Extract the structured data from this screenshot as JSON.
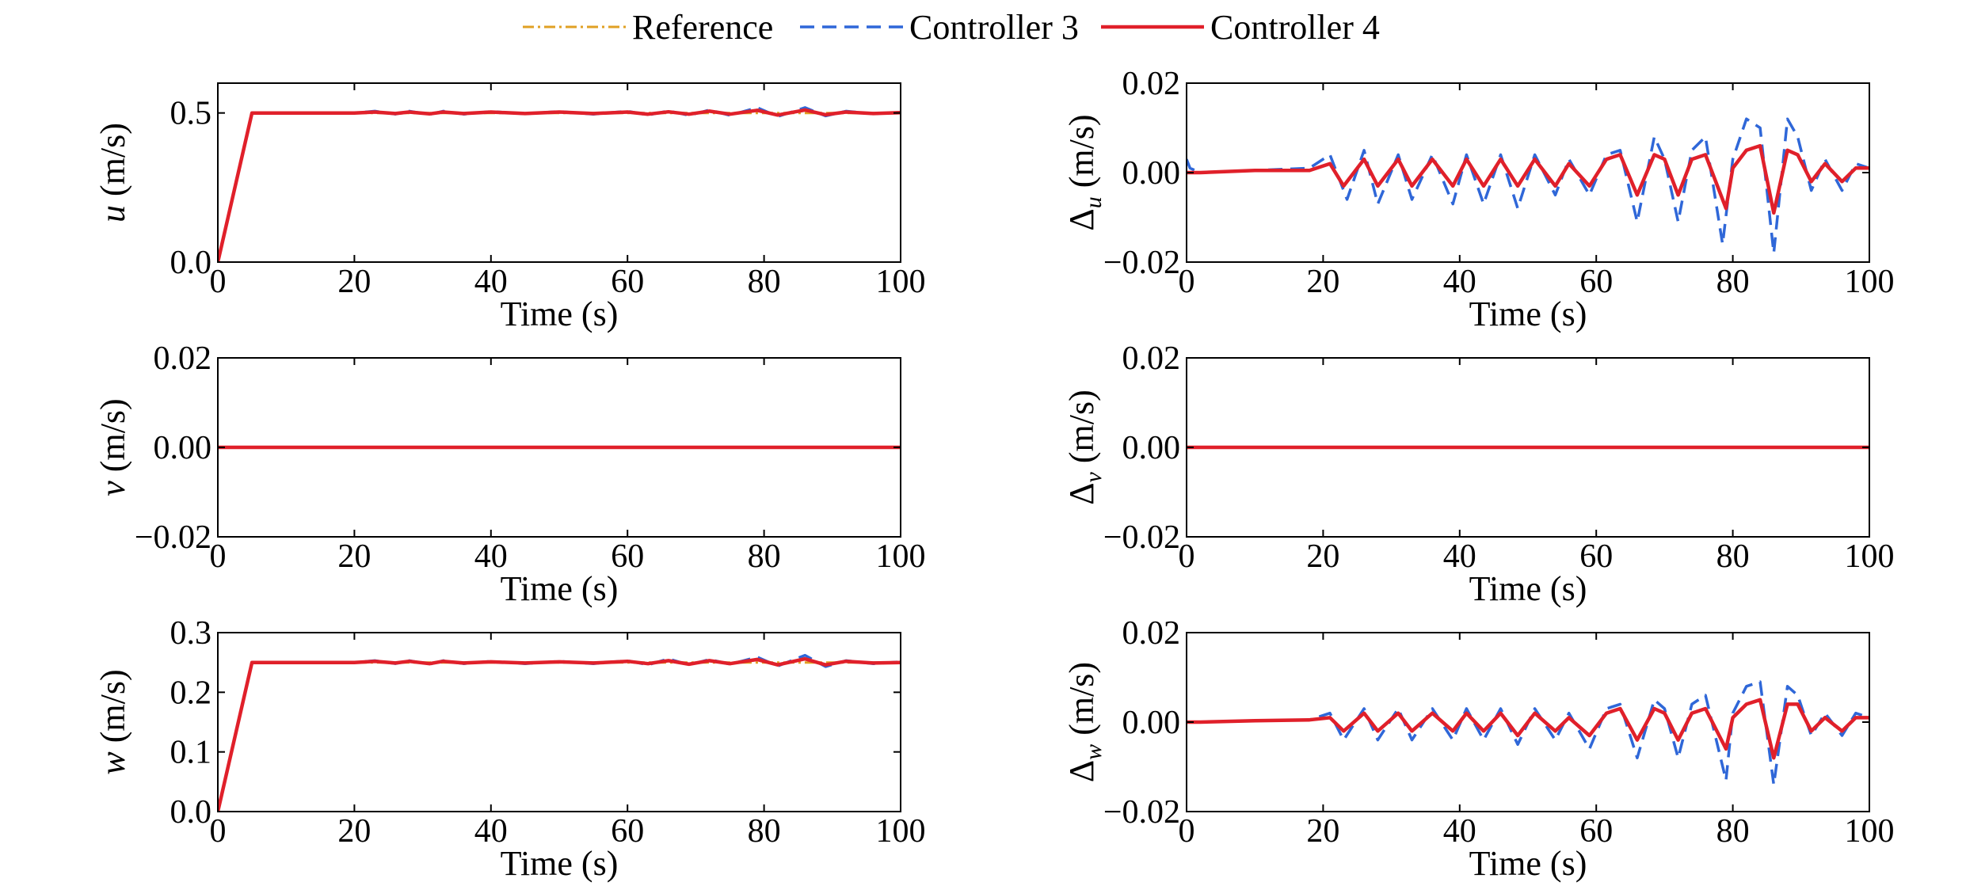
{
  "legend": {
    "entries": [
      {
        "label": "Reference",
        "color": "#E0A024",
        "dash": "dash-dot"
      },
      {
        "label": "Controller 3",
        "color": "#2F67D8",
        "dash": "dashed"
      },
      {
        "label": "Controller 4",
        "color": "#E0202A",
        "dash": "solid"
      }
    ]
  },
  "chart_data": [
    {
      "type": "line",
      "id": "u",
      "ylabel_var": "u",
      "ylabel_sub": "",
      "ylabel_unit": " (m/s)",
      "xlabel": "Time (s)",
      "xlim": [
        0,
        100
      ],
      "ylim": [
        0,
        0.6
      ],
      "xticks": [
        0,
        20,
        40,
        60,
        80,
        100
      ],
      "xtick_labels": [
        "0",
        "20",
        "40",
        "60",
        "80",
        "100"
      ],
      "yticks": [
        0,
        0.5
      ],
      "ytick_labels": [
        "0.0",
        "0.5"
      ],
      "series": [
        {
          "label_ref": 0,
          "x": [
            0,
            5,
            20,
            30,
            40,
            50,
            60,
            70,
            79,
            86,
            90,
            100
          ],
          "y": [
            0,
            0.5,
            0.5,
            0.5,
            0.5,
            0.5,
            0.5,
            0.5,
            0.5,
            0.5,
            0.5,
            0.5
          ]
        },
        {
          "label_ref": 1,
          "x": [
            0,
            5,
            20,
            23,
            26,
            28,
            31,
            33,
            36,
            40,
            45,
            50,
            55,
            60,
            63,
            66,
            69,
            72,
            75,
            79,
            82,
            86,
            89,
            92,
            96,
            100
          ],
          "y": [
            0,
            0.5,
            0.5,
            0.506,
            0.496,
            0.506,
            0.495,
            0.506,
            0.496,
            0.505,
            0.497,
            0.505,
            0.496,
            0.506,
            0.493,
            0.507,
            0.492,
            0.51,
            0.492,
            0.518,
            0.488,
            0.518,
            0.49,
            0.506,
            0.497,
            0.502
          ]
        },
        {
          "label_ref": 2,
          "x": [
            0,
            5,
            20,
            23,
            26,
            28,
            31,
            33,
            36,
            40,
            45,
            50,
            55,
            60,
            63,
            66,
            69,
            72,
            75,
            79,
            82,
            86,
            89,
            92,
            96,
            100
          ],
          "y": [
            0,
            0.5,
            0.5,
            0.503,
            0.498,
            0.503,
            0.497,
            0.503,
            0.498,
            0.503,
            0.498,
            0.503,
            0.498,
            0.503,
            0.496,
            0.504,
            0.496,
            0.506,
            0.496,
            0.509,
            0.493,
            0.51,
            0.494,
            0.503,
            0.498,
            0.501
          ]
        }
      ]
    },
    {
      "type": "line",
      "id": "du",
      "ylabel_var": "Δ",
      "ylabel_sub": "u",
      "ylabel_unit": " (m/s)",
      "xlabel": "Time (s)",
      "xlim": [
        0,
        100
      ],
      "ylim": [
        -0.02,
        0.02
      ],
      "xticks": [
        0,
        20,
        40,
        60,
        80,
        100
      ],
      "xtick_labels": [
        "0",
        "20",
        "40",
        "60",
        "80",
        "100"
      ],
      "yticks": [
        -0.02,
        0,
        0.02
      ],
      "ytick_labels": [
        "−0.02",
        "0.00",
        "0.02"
      ],
      "series": [
        {
          "label_ref": 1,
          "x": [
            0,
            0.5,
            2,
            10,
            18,
            21,
            23.5,
            26,
            28,
            31,
            33,
            36,
            39,
            41,
            43.5,
            46,
            48.5,
            51,
            54,
            56,
            59,
            61.5,
            63.5,
            66,
            68.5,
            70,
            72,
            74,
            76,
            78.5,
            80,
            82,
            84,
            86,
            88,
            89.5,
            91.5,
            93.5,
            96,
            98,
            100
          ],
          "y": [
            0.003,
            0.001,
            0,
            0.0005,
            0.001,
            0.004,
            -0.006,
            0.005,
            -0.007,
            0.004,
            -0.006,
            0.004,
            -0.007,
            0.004,
            -0.007,
            0.004,
            -0.008,
            0.004,
            -0.005,
            0.003,
            -0.005,
            0.004,
            0.005,
            -0.011,
            0.008,
            0.003,
            -0.011,
            0.005,
            0.008,
            -0.016,
            0.003,
            0.012,
            0.01,
            -0.018,
            0.012,
            0.008,
            -0.004,
            0.003,
            -0.004,
            0.002,
            0.001
          ]
        },
        {
          "label_ref": 2,
          "x": [
            0,
            2,
            10,
            18,
            21,
            23,
            26,
            28,
            31,
            33,
            36,
            39,
            41,
            43.5,
            46,
            48.5,
            51,
            54,
            56,
            59,
            61.5,
            63.5,
            66,
            68.5,
            70,
            72,
            74,
            76,
            79,
            80,
            82,
            84,
            86,
            88,
            89.5,
            91.5,
            93.5,
            96,
            98,
            100
          ],
          "y": [
            0,
            0,
            0.0005,
            0.0005,
            0.002,
            -0.003,
            0.003,
            -0.003,
            0.003,
            -0.003,
            0.003,
            -0.003,
            0.003,
            -0.003,
            0.003,
            -0.003,
            0.003,
            -0.003,
            0.002,
            -0.003,
            0.003,
            0.004,
            -0.005,
            0.004,
            0.003,
            -0.005,
            0.003,
            0.004,
            -0.008,
            0.001,
            0.005,
            0.006,
            -0.009,
            0.005,
            0.004,
            -0.002,
            0.002,
            -0.002,
            0.001,
            0.001
          ]
        }
      ]
    },
    {
      "type": "line",
      "id": "v",
      "ylabel_var": "v",
      "ylabel_sub": "",
      "ylabel_unit": " (m/s)",
      "xlabel": "Time (s)",
      "xlim": [
        0,
        100
      ],
      "ylim": [
        -0.02,
        0.02
      ],
      "xticks": [
        0,
        20,
        40,
        60,
        80,
        100
      ],
      "xtick_labels": [
        "0",
        "20",
        "40",
        "60",
        "80",
        "100"
      ],
      "yticks": [
        -0.02,
        0,
        0.02
      ],
      "ytick_labels": [
        "−0.02",
        "0.00",
        "0.02"
      ],
      "series": [
        {
          "label_ref": 0,
          "x": [
            0,
            100
          ],
          "y": [
            0,
            0
          ]
        },
        {
          "label_ref": 1,
          "x": [
            0,
            100
          ],
          "y": [
            0,
            0
          ]
        },
        {
          "label_ref": 2,
          "x": [
            0,
            100
          ],
          "y": [
            0,
            0
          ]
        }
      ]
    },
    {
      "type": "line",
      "id": "dv",
      "ylabel_var": "Δ",
      "ylabel_sub": "v",
      "ylabel_unit": " (m/s)",
      "xlabel": "Time (s)",
      "xlim": [
        0,
        100
      ],
      "ylim": [
        -0.02,
        0.02
      ],
      "xticks": [
        0,
        20,
        40,
        60,
        80,
        100
      ],
      "xtick_labels": [
        "0",
        "20",
        "40",
        "60",
        "80",
        "100"
      ],
      "yticks": [
        -0.02,
        0,
        0.02
      ],
      "ytick_labels": [
        "−0.02",
        "0.00",
        "0.02"
      ],
      "series": [
        {
          "label_ref": 1,
          "x": [
            0,
            100
          ],
          "y": [
            0,
            0
          ]
        },
        {
          "label_ref": 2,
          "x": [
            0,
            100
          ],
          "y": [
            0,
            0
          ]
        }
      ]
    },
    {
      "type": "line",
      "id": "w",
      "ylabel_var": "w",
      "ylabel_sub": "",
      "ylabel_unit": " (m/s)",
      "xlabel": "Time (s)",
      "xlim": [
        0,
        100
      ],
      "ylim": [
        0,
        0.3
      ],
      "xticks": [
        0,
        20,
        40,
        60,
        80,
        100
      ],
      "xtick_labels": [
        "0",
        "20",
        "40",
        "60",
        "80",
        "100"
      ],
      "yticks": [
        0,
        0.1,
        0.2,
        0.3
      ],
      "ytick_labels": [
        "0.0",
        "0.1",
        "0.2",
        "0.3"
      ],
      "series": [
        {
          "label_ref": 0,
          "x": [
            0,
            5,
            20,
            40,
            60,
            80,
            100
          ],
          "y": [
            0,
            0.25,
            0.25,
            0.25,
            0.25,
            0.25,
            0.25
          ]
        },
        {
          "label_ref": 1,
          "x": [
            0,
            5,
            20,
            23,
            26,
            28,
            31,
            33,
            36,
            40,
            45,
            50,
            55,
            60,
            63,
            66,
            69,
            72,
            75,
            79,
            82,
            86,
            89,
            92,
            96,
            100
          ],
          "y": [
            0,
            0.25,
            0.25,
            0.253,
            0.248,
            0.253,
            0.247,
            0.253,
            0.248,
            0.252,
            0.248,
            0.252,
            0.248,
            0.253,
            0.246,
            0.256,
            0.246,
            0.255,
            0.247,
            0.259,
            0.244,
            0.262,
            0.243,
            0.253,
            0.248,
            0.251
          ]
        },
        {
          "label_ref": 2,
          "x": [
            0,
            5,
            20,
            23,
            26,
            28,
            31,
            33,
            36,
            40,
            45,
            50,
            55,
            60,
            63,
            66,
            69,
            72,
            75,
            79,
            82,
            86,
            89,
            92,
            96,
            100
          ],
          "y": [
            0,
            0.25,
            0.25,
            0.252,
            0.249,
            0.252,
            0.248,
            0.252,
            0.249,
            0.251,
            0.249,
            0.251,
            0.249,
            0.252,
            0.248,
            0.253,
            0.247,
            0.253,
            0.248,
            0.255,
            0.246,
            0.256,
            0.246,
            0.252,
            0.249,
            0.25
          ]
        }
      ]
    },
    {
      "type": "line",
      "id": "dw",
      "ylabel_var": "Δ",
      "ylabel_sub": "w",
      "ylabel_unit": " (m/s)",
      "xlabel": "Time (s)",
      "xlim": [
        0,
        100
      ],
      "ylim": [
        -0.02,
        0.02
      ],
      "xticks": [
        0,
        20,
        40,
        60,
        80,
        100
      ],
      "xtick_labels": [
        "0",
        "20",
        "40",
        "60",
        "80",
        "100"
      ],
      "yticks": [
        -0.02,
        0,
        0.02
      ],
      "ytick_labels": [
        "−0.02",
        "0.00",
        "0.02"
      ],
      "series": [
        {
          "label_ref": 1,
          "x": [
            0,
            2,
            10,
            18,
            21,
            23,
            26,
            28,
            31,
            33,
            36,
            39,
            41,
            43.5,
            46,
            48.5,
            51,
            54,
            56,
            59,
            61.5,
            63.5,
            66,
            68.5,
            70,
            72,
            74,
            76,
            79,
            80,
            82,
            84,
            86,
            88,
            89.5,
            91.5,
            93.5,
            96,
            98,
            100
          ],
          "y": [
            0,
            0,
            0.0003,
            0.0005,
            0.002,
            -0.004,
            0.003,
            -0.004,
            0.003,
            -0.004,
            0.003,
            -0.004,
            0.003,
            -0.004,
            0.003,
            -0.005,
            0.003,
            -0.004,
            0.002,
            -0.006,
            0.003,
            0.004,
            -0.008,
            0.005,
            0.003,
            -0.008,
            0.004,
            0.006,
            -0.013,
            0.002,
            0.008,
            0.009,
            -0.014,
            0.008,
            0.006,
            -0.003,
            0.002,
            -0.003,
            0.002,
            0.001
          ]
        },
        {
          "label_ref": 2,
          "x": [
            0,
            2,
            10,
            18,
            21,
            23,
            26,
            28,
            31,
            33,
            36,
            39,
            41,
            43.5,
            46,
            48.5,
            51,
            54,
            56,
            59,
            61.5,
            63.5,
            66,
            68.5,
            70,
            72,
            74,
            76,
            79,
            80,
            82,
            84,
            86,
            88,
            89.5,
            91.5,
            93.5,
            96,
            98,
            100
          ],
          "y": [
            0,
            0,
            0.0003,
            0.0005,
            0.001,
            -0.002,
            0.002,
            -0.002,
            0.002,
            -0.002,
            0.002,
            -0.002,
            0.002,
            -0.002,
            0.002,
            -0.003,
            0.002,
            -0.002,
            0.001,
            -0.003,
            0.002,
            0.003,
            -0.004,
            0.003,
            0.002,
            -0.004,
            0.002,
            0.003,
            -0.006,
            0.001,
            0.004,
            0.005,
            -0.008,
            0.004,
            0.004,
            -0.002,
            0.001,
            -0.002,
            0.001,
            0.001
          ]
        }
      ]
    }
  ]
}
